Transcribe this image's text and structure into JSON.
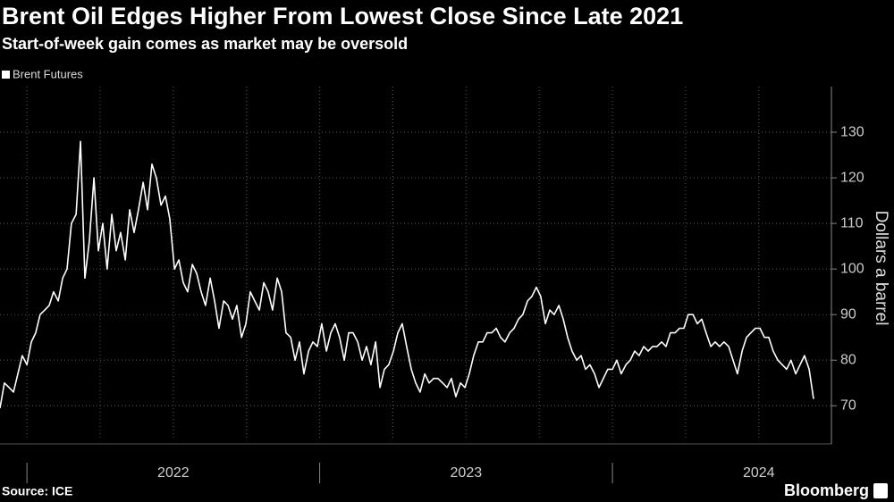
{
  "chart_data": {
    "type": "line",
    "title": "Brent Oil Edges Higher From Lowest Close Since Late 2021",
    "subtitle": "Start-of-week gain comes as market may be oversold",
    "y_axis_label": "Dollars a barrel",
    "source": "Source: ICE",
    "brand": "Bloomberg",
    "xlim": [
      2021.908,
      2024.748
    ],
    "xticks": [
      {
        "value": 2022.5,
        "label": "2022"
      },
      {
        "value": 2023.5,
        "label": "2023"
      },
      {
        "value": 2024.5,
        "label": "2024"
      }
    ],
    "xgrid": [
      2022,
      2022.25,
      2022.5,
      2022.75,
      2023,
      2023.25,
      2023.5,
      2023.75,
      2024,
      2024.25,
      2024.5
    ],
    "ylim": [
      63,
      140
    ],
    "yticks": [
      70,
      80,
      90,
      100,
      110,
      120,
      130
    ],
    "grid": true,
    "legend": "top-left",
    "x": [
      2021.908,
      2021.923,
      2021.939,
      2021.954,
      2021.969,
      2021.984,
      2022.0,
      2022.015,
      2022.03,
      2022.045,
      2022.061,
      2022.076,
      2022.091,
      2022.107,
      2022.122,
      2022.137,
      2022.152,
      2022.168,
      2022.183,
      2022.198,
      2022.213,
      2022.229,
      2022.244,
      2022.259,
      2022.274,
      2022.29,
      2022.305,
      2022.32,
      2022.336,
      2022.351,
      2022.366,
      2022.381,
      2022.397,
      2022.412,
      2022.427,
      2022.442,
      2022.458,
      2022.473,
      2022.488,
      2022.504,
      2022.519,
      2022.534,
      2022.549,
      2022.565,
      2022.58,
      2022.595,
      2022.61,
      2022.626,
      2022.641,
      2022.656,
      2022.672,
      2022.687,
      2022.702,
      2022.717,
      2022.733,
      2022.748,
      2022.763,
      2022.778,
      2022.794,
      2022.809,
      2022.824,
      2022.839,
      2022.855,
      2022.87,
      2022.885,
      2022.901,
      2022.916,
      2022.931,
      2022.946,
      2022.962,
      2022.977,
      2022.992,
      2023.007,
      2023.023,
      2023.038,
      2023.053,
      2023.068,
      2023.084,
      2023.099,
      2023.114,
      2023.13,
      2023.145,
      2023.16,
      2023.175,
      2023.191,
      2023.206,
      2023.221,
      2023.236,
      2023.252,
      2023.267,
      2023.282,
      2023.297,
      2023.313,
      2023.328,
      2023.343,
      2023.359,
      2023.374,
      2023.389,
      2023.404,
      2023.42,
      2023.435,
      2023.45,
      2023.465,
      2023.481,
      2023.496,
      2023.511,
      2023.526,
      2023.542,
      2023.557,
      2023.572,
      2023.588,
      2023.603,
      2023.618,
      2023.633,
      2023.649,
      2023.664,
      2023.679,
      2023.694,
      2023.71,
      2023.725,
      2023.74,
      2023.755,
      2023.771,
      2023.786,
      2023.801,
      2023.817,
      2023.832,
      2023.847,
      2023.862,
      2023.878,
      2023.893,
      2023.908,
      2023.923,
      2023.939,
      2023.954,
      2023.969,
      2023.984,
      2024.0,
      2024.015,
      2024.03,
      2024.046,
      2024.061,
      2024.076,
      2024.091,
      2024.107,
      2024.122,
      2024.137,
      2024.152,
      2024.168,
      2024.183,
      2024.198,
      2024.214,
      2024.229,
      2024.244,
      2024.259,
      2024.275,
      2024.29,
      2024.305,
      2024.32,
      2024.336,
      2024.351,
      2024.366,
      2024.381,
      2024.397,
      2024.412,
      2024.427,
      2024.443,
      2024.458,
      2024.473,
      2024.488,
      2024.504,
      2024.519,
      2024.534,
      2024.549,
      2024.565,
      2024.58,
      2024.595,
      2024.61,
      2024.626,
      2024.641,
      2024.656,
      2024.672,
      2024.687
    ],
    "series": [
      {
        "name": "Brent Futures",
        "color": "#ffffff",
        "values": [
          69.5,
          75,
          74,
          73,
          77,
          81,
          79,
          84,
          86,
          90,
          91,
          92,
          95,
          93,
          98,
          100,
          110,
          112,
          128,
          98,
          106,
          120,
          104,
          110,
          100,
          112,
          104,
          108,
          102,
          113,
          108,
          113,
          119,
          113,
          123,
          120,
          114,
          116,
          111,
          100,
          102,
          97,
          95,
          101,
          99,
          95,
          92,
          98,
          93,
          87,
          93,
          92,
          89,
          92,
          85,
          88,
          95,
          93,
          91,
          97,
          95,
          91,
          98,
          95,
          86,
          85,
          80,
          84,
          77,
          82,
          84,
          83,
          88,
          82,
          86,
          88,
          85,
          80,
          86,
          86,
          84,
          80,
          83,
          79,
          84,
          74,
          78,
          79,
          82,
          86,
          88,
          83,
          78,
          75,
          73,
          77,
          75,
          76,
          76,
          75,
          74,
          76,
          72,
          75,
          74,
          77,
          81,
          84,
          84,
          86,
          86,
          87,
          85,
          84,
          86,
          87,
          89,
          90,
          93,
          94,
          96,
          94,
          88,
          91,
          90,
          92,
          89,
          85,
          82,
          80,
          81,
          78,
          79,
          77,
          74,
          76,
          78,
          78,
          80,
          77,
          79,
          80,
          82,
          81,
          83,
          82,
          83,
          83,
          84,
          83,
          86,
          86,
          87,
          87,
          90,
          90,
          88,
          89,
          86,
          83,
          84,
          83,
          84,
          83,
          80,
          77,
          82,
          85,
          86,
          87,
          87,
          85,
          85,
          82,
          80,
          79,
          78,
          80,
          77,
          79,
          81,
          78,
          71.5
        ]
      }
    ]
  }
}
